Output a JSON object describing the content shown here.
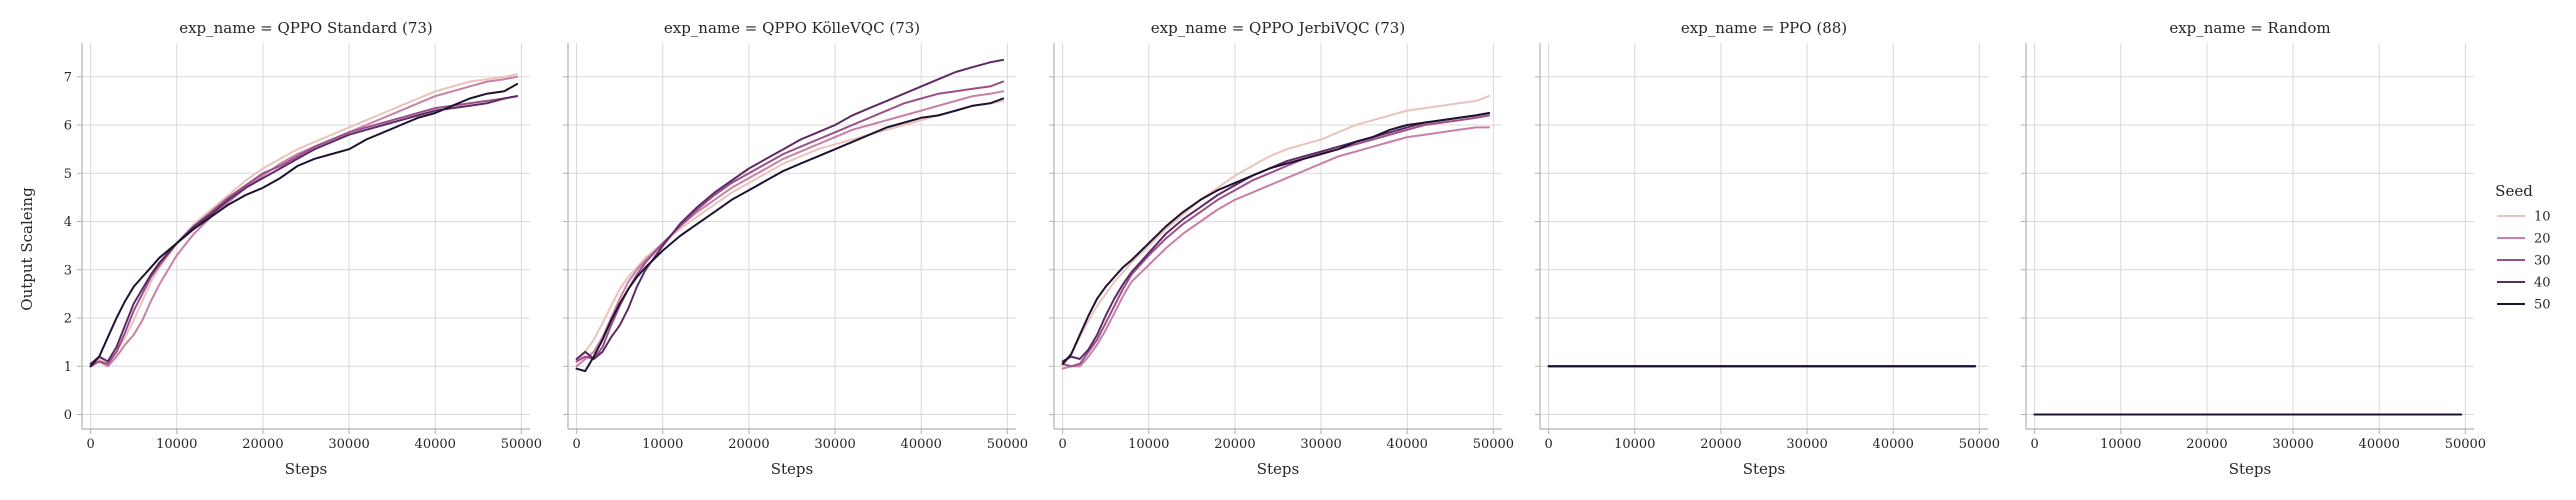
{
  "chart_data": {
    "type": "line",
    "ylabel": "Output Scaleing",
    "xlabel": "Steps",
    "xlim": [
      -1000,
      51000
    ],
    "ylim": [
      -0.3,
      7.7
    ],
    "xticks": [
      0,
      10000,
      20000,
      30000,
      40000,
      50000
    ],
    "yticks": [
      0,
      1,
      2,
      3,
      4,
      5,
      6,
      7
    ],
    "grid": true,
    "legend": {
      "title": "Seed",
      "placement": "right",
      "entries": [
        {
          "label": "10",
          "color": "#eac3bc"
        },
        {
          "label": "20",
          "color": "#c97fa6"
        },
        {
          "label": "30",
          "color": "#9b4f8a"
        },
        {
          "label": "40",
          "color": "#5e2a64"
        },
        {
          "label": "50",
          "color": "#1e1230"
        }
      ]
    },
    "x": [
      0,
      1000,
      2000,
      3000,
      4000,
      5000,
      6000,
      7000,
      8000,
      10000,
      12000,
      14000,
      16000,
      18000,
      20000,
      22000,
      24000,
      26000,
      28000,
      30000,
      32000,
      34000,
      36000,
      38000,
      40000,
      42000,
      44000,
      46000,
      48000,
      49500
    ],
    "panels": [
      {
        "title": "exp_name = QPPO Standard (73)",
        "series": [
          {
            "name": "10",
            "values": [
              1.05,
              1.15,
              1.05,
              1.3,
              1.6,
              1.95,
              2.35,
              2.75,
              3.05,
              3.55,
              3.95,
              4.25,
              4.55,
              4.85,
              5.1,
              5.3,
              5.5,
              5.65,
              5.8,
              5.95,
              6.1,
              6.25,
              6.4,
              6.55,
              6.7,
              6.8,
              6.9,
              6.95,
              7.0,
              7.05
            ]
          },
          {
            "name": "20",
            "values": [
              1.0,
              1.1,
              1.0,
              1.2,
              1.45,
              1.65,
              1.95,
              2.35,
              2.7,
              3.3,
              3.75,
              4.1,
              4.4,
              4.7,
              4.95,
              5.2,
              5.4,
              5.55,
              5.7,
              5.85,
              6.0,
              6.15,
              6.3,
              6.45,
              6.6,
              6.7,
              6.8,
              6.9,
              6.95,
              7.0
            ]
          },
          {
            "name": "30",
            "values": [
              1.0,
              1.1,
              1.05,
              1.3,
              1.7,
              2.15,
              2.5,
              2.85,
              3.1,
              3.55,
              3.9,
              4.2,
              4.5,
              4.75,
              5.0,
              5.15,
              5.35,
              5.55,
              5.7,
              5.85,
              5.95,
              6.05,
              6.15,
              6.25,
              6.35,
              6.4,
              6.45,
              6.5,
              6.55,
              6.6
            ]
          },
          {
            "name": "40",
            "values": [
              1.05,
              1.2,
              1.1,
              1.4,
              1.85,
              2.3,
              2.6,
              2.9,
              3.15,
              3.55,
              3.9,
              4.15,
              4.45,
              4.7,
              4.9,
              5.1,
              5.3,
              5.5,
              5.65,
              5.8,
              5.9,
              6.0,
              6.1,
              6.2,
              6.3,
              6.35,
              6.4,
              6.45,
              6.55,
              6.6
            ]
          },
          {
            "name": "50",
            "values": [
              1.0,
              1.2,
              1.6,
              2.0,
              2.35,
              2.65,
              2.85,
              3.05,
              3.25,
              3.55,
              3.85,
              4.1,
              4.35,
              4.55,
              4.7,
              4.9,
              5.15,
              5.3,
              5.4,
              5.5,
              5.7,
              5.85,
              6.0,
              6.15,
              6.25,
              6.4,
              6.55,
              6.65,
              6.7,
              6.85
            ]
          }
        ]
      },
      {
        "title": "exp_name = QPPO KölleVQC (73)",
        "series": [
          {
            "name": "10",
            "values": [
              1.1,
              1.3,
              1.55,
              1.9,
              2.25,
              2.6,
              2.85,
              3.05,
              3.25,
              3.55,
              3.85,
              4.1,
              4.35,
              4.6,
              4.8,
              5.0,
              5.2,
              5.35,
              5.5,
              5.6,
              5.7,
              5.8,
              5.9,
              6.0,
              6.1,
              6.2,
              6.3,
              6.4,
              6.45,
              6.5
            ]
          },
          {
            "name": "20",
            "values": [
              1.0,
              1.15,
              1.3,
              1.6,
              2.0,
              2.4,
              2.75,
              3.0,
              3.2,
              3.55,
              3.9,
              4.2,
              4.45,
              4.7,
              4.9,
              5.1,
              5.3,
              5.45,
              5.6,
              5.75,
              5.9,
              6.0,
              6.1,
              6.2,
              6.3,
              6.4,
              6.5,
              6.6,
              6.65,
              6.7
            ]
          },
          {
            "name": "30",
            "values": [
              1.1,
              1.2,
              1.15,
              1.4,
              1.85,
              2.25,
              2.6,
              2.9,
              3.15,
              3.55,
              3.9,
              4.25,
              4.55,
              4.8,
              5.0,
              5.2,
              5.4,
              5.55,
              5.7,
              5.85,
              6.0,
              6.15,
              6.3,
              6.45,
              6.55,
              6.65,
              6.7,
              6.75,
              6.8,
              6.9
            ]
          },
          {
            "name": "40",
            "values": [
              1.15,
              1.3,
              1.15,
              1.3,
              1.6,
              1.85,
              2.2,
              2.65,
              3.0,
              3.5,
              3.95,
              4.3,
              4.6,
              4.85,
              5.1,
              5.3,
              5.5,
              5.7,
              5.85,
              6.0,
              6.2,
              6.35,
              6.5,
              6.65,
              6.8,
              6.95,
              7.1,
              7.2,
              7.3,
              7.35
            ]
          },
          {
            "name": "50",
            "values": [
              0.95,
              0.9,
              1.2,
              1.55,
              1.95,
              2.3,
              2.6,
              2.85,
              3.05,
              3.4,
              3.7,
              3.95,
              4.2,
              4.45,
              4.65,
              4.85,
              5.05,
              5.2,
              5.35,
              5.5,
              5.65,
              5.8,
              5.95,
              6.05,
              6.15,
              6.2,
              6.3,
              6.4,
              6.45,
              6.55
            ]
          }
        ]
      },
      {
        "title": "exp_name = QPPO JerbiVQC (73)",
        "series": [
          {
            "name": "10",
            "values": [
              1.0,
              1.25,
              1.6,
              1.95,
              2.25,
              2.5,
              2.75,
              2.95,
              3.15,
              3.5,
              3.85,
              4.15,
              4.45,
              4.7,
              4.95,
              5.15,
              5.35,
              5.5,
              5.6,
              5.7,
              5.85,
              6.0,
              6.1,
              6.2,
              6.3,
              6.35,
              6.4,
              6.45,
              6.5,
              6.6
            ]
          },
          {
            "name": "20",
            "values": [
              0.95,
              1.0,
              1.0,
              1.2,
              1.45,
              1.75,
              2.1,
              2.45,
              2.75,
              3.1,
              3.45,
              3.75,
              4.0,
              4.25,
              4.45,
              4.6,
              4.75,
              4.9,
              5.05,
              5.2,
              5.35,
              5.45,
              5.55,
              5.65,
              5.75,
              5.8,
              5.85,
              5.9,
              5.95,
              5.95
            ]
          },
          {
            "name": "30",
            "values": [
              1.05,
              1.0,
              1.05,
              1.3,
              1.55,
              1.9,
              2.25,
              2.6,
              2.9,
              3.3,
              3.65,
              3.95,
              4.2,
              4.45,
              4.65,
              4.85,
              5.0,
              5.15,
              5.3,
              5.4,
              5.5,
              5.6,
              5.7,
              5.8,
              5.9,
              6.0,
              6.05,
              6.1,
              6.15,
              6.2
            ]
          },
          {
            "name": "40",
            "values": [
              1.1,
              1.2,
              1.15,
              1.35,
              1.65,
              2.05,
              2.4,
              2.7,
              2.95,
              3.35,
              3.75,
              4.05,
              4.3,
              4.55,
              4.75,
              4.95,
              5.1,
              5.25,
              5.35,
              5.45,
              5.55,
              5.65,
              5.75,
              5.85,
              5.95,
              6.05,
              6.1,
              6.15,
              6.2,
              6.25
            ]
          },
          {
            "name": "50",
            "values": [
              1.05,
              1.25,
              1.65,
              2.05,
              2.4,
              2.65,
              2.85,
              3.05,
              3.2,
              3.55,
              3.9,
              4.2,
              4.45,
              4.65,
              4.8,
              4.95,
              5.1,
              5.2,
              5.3,
              5.4,
              5.5,
              5.65,
              5.75,
              5.9,
              6.0,
              6.05,
              6.1,
              6.15,
              6.2,
              6.25
            ]
          }
        ]
      },
      {
        "title": "exp_name = PPO (88)",
        "series": [
          {
            "name": "10",
            "values": [
              1,
              1,
              1,
              1,
              1,
              1,
              1,
              1,
              1,
              1,
              1,
              1,
              1,
              1,
              1,
              1,
              1,
              1,
              1,
              1,
              1,
              1,
              1,
              1,
              1,
              1,
              1,
              1,
              1,
              1
            ]
          },
          {
            "name": "20",
            "values": [
              1,
              1,
              1,
              1,
              1,
              1,
              1,
              1,
              1,
              1,
              1,
              1,
              1,
              1,
              1,
              1,
              1,
              1,
              1,
              1,
              1,
              1,
              1,
              1,
              1,
              1,
              1,
              1,
              1,
              1
            ]
          },
          {
            "name": "30",
            "values": [
              1,
              1,
              1,
              1,
              1,
              1,
              1,
              1,
              1,
              1,
              1,
              1,
              1,
              1,
              1,
              1,
              1,
              1,
              1,
              1,
              1,
              1,
              1,
              1,
              1,
              1,
              1,
              1,
              1,
              1
            ]
          },
          {
            "name": "40",
            "values": [
              1,
              1,
              1,
              1,
              1,
              1,
              1,
              1,
              1,
              1,
              1,
              1,
              1,
              1,
              1,
              1,
              1,
              1,
              1,
              1,
              1,
              1,
              1,
              1,
              1,
              1,
              1,
              1,
              1,
              1
            ]
          },
          {
            "name": "50",
            "values": [
              1,
              1,
              1,
              1,
              1,
              1,
              1,
              1,
              1,
              1,
              1,
              1,
              1,
              1,
              1,
              1,
              1,
              1,
              1,
              1,
              1,
              1,
              1,
              1,
              1,
              1,
              1,
              1,
              1,
              1
            ]
          }
        ]
      },
      {
        "title": "exp_name = Random",
        "series": [
          {
            "name": "10",
            "values": [
              0,
              0,
              0,
              0,
              0,
              0,
              0,
              0,
              0,
              0,
              0,
              0,
              0,
              0,
              0,
              0,
              0,
              0,
              0,
              0,
              0,
              0,
              0,
              0,
              0,
              0,
              0,
              0,
              0,
              0
            ]
          },
          {
            "name": "20",
            "values": [
              0,
              0,
              0,
              0,
              0,
              0,
              0,
              0,
              0,
              0,
              0,
              0,
              0,
              0,
              0,
              0,
              0,
              0,
              0,
              0,
              0,
              0,
              0,
              0,
              0,
              0,
              0,
              0,
              0,
              0
            ]
          },
          {
            "name": "30",
            "values": [
              0,
              0,
              0,
              0,
              0,
              0,
              0,
              0,
              0,
              0,
              0,
              0,
              0,
              0,
              0,
              0,
              0,
              0,
              0,
              0,
              0,
              0,
              0,
              0,
              0,
              0,
              0,
              0,
              0,
              0
            ]
          },
          {
            "name": "40",
            "values": [
              0,
              0,
              0,
              0,
              0,
              0,
              0,
              0,
              0,
              0,
              0,
              0,
              0,
              0,
              0,
              0,
              0,
              0,
              0,
              0,
              0,
              0,
              0,
              0,
              0,
              0,
              0,
              0,
              0,
              0
            ]
          },
          {
            "name": "50",
            "values": [
              0,
              0,
              0,
              0,
              0,
              0,
              0,
              0,
              0,
              0,
              0,
              0,
              0,
              0,
              0,
              0,
              0,
              0,
              0,
              0,
              0,
              0,
              0,
              0,
              0,
              0,
              0,
              0,
              0,
              0
            ]
          }
        ]
      }
    ]
  }
}
